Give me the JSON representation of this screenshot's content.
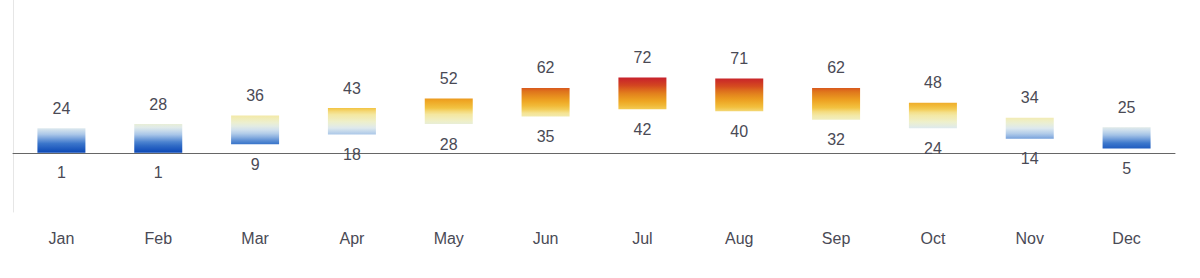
{
  "chart_data": {
    "type": "bar",
    "categories": [
      "Jan",
      "Feb",
      "Mar",
      "Apr",
      "May",
      "Jun",
      "Jul",
      "Aug",
      "Sep",
      "Oct",
      "Nov",
      "Dec"
    ],
    "values": [
      [
        1,
        24
      ],
      [
        1,
        28
      ],
      [
        9,
        36
      ],
      [
        18,
        43
      ],
      [
        28,
        52
      ],
      [
        35,
        62
      ],
      [
        42,
        72
      ],
      [
        40,
        71
      ],
      [
        32,
        62
      ],
      [
        24,
        48
      ],
      [
        14,
        34
      ],
      [
        5,
        25
      ]
    ],
    "ylim": [
      -55,
      145
    ],
    "grid": false,
    "data_labels": true,
    "tick_labels": "x"
  }
}
